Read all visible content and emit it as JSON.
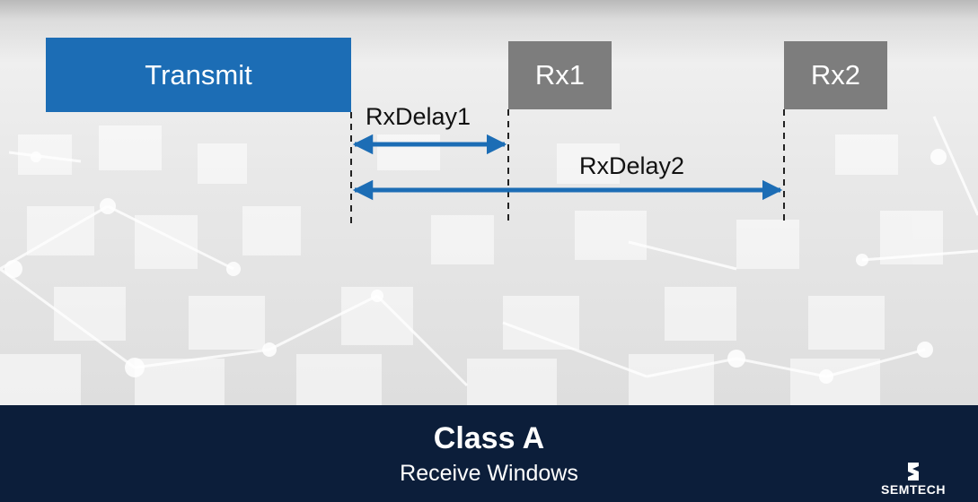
{
  "diagram": {
    "transmit_label": "Transmit",
    "rx1_label": "Rx1",
    "rx2_label": "Rx2",
    "rxdelay1_label": "RxDelay1",
    "rxdelay2_label": "RxDelay2"
  },
  "footer": {
    "title": "Class A",
    "subtitle": "Receive Windows"
  },
  "logo": {
    "text": "SEMTECH"
  },
  "colors": {
    "transmit": "#1c6db5",
    "receive_window": "#7d7d7d",
    "arrow": "#1c6db5",
    "footer_background": "#0c1e3a"
  }
}
